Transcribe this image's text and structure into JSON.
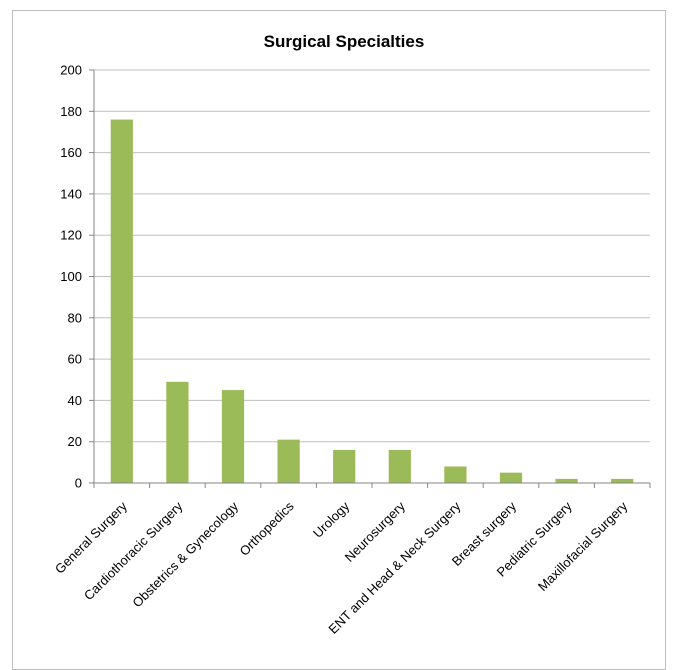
{
  "chart_data": {
    "type": "bar",
    "title": "Surgical Specialties",
    "xlabel": "",
    "ylabel": "",
    "categories": [
      "General Surgery",
      "Cardiothoracic Surgery",
      "Obstetrics & Gynecology",
      "Orthopedics",
      "Urology",
      "Neurosurgery",
      "ENT and Head & Neck Surgery",
      "Breast surgery",
      "Pediatric Surgery",
      "Maxillofacial Surgery"
    ],
    "values": [
      176,
      49,
      45,
      21,
      16,
      16,
      8,
      5,
      2,
      2
    ],
    "ylim": [
      0,
      200
    ],
    "yticks": [
      0,
      20,
      40,
      60,
      80,
      100,
      120,
      140,
      160,
      180,
      200
    ],
    "grid": true,
    "legend": "none",
    "colors": {
      "bar": "#9bbb59",
      "grid": "#c0c0c0",
      "axis": "#868686"
    }
  }
}
